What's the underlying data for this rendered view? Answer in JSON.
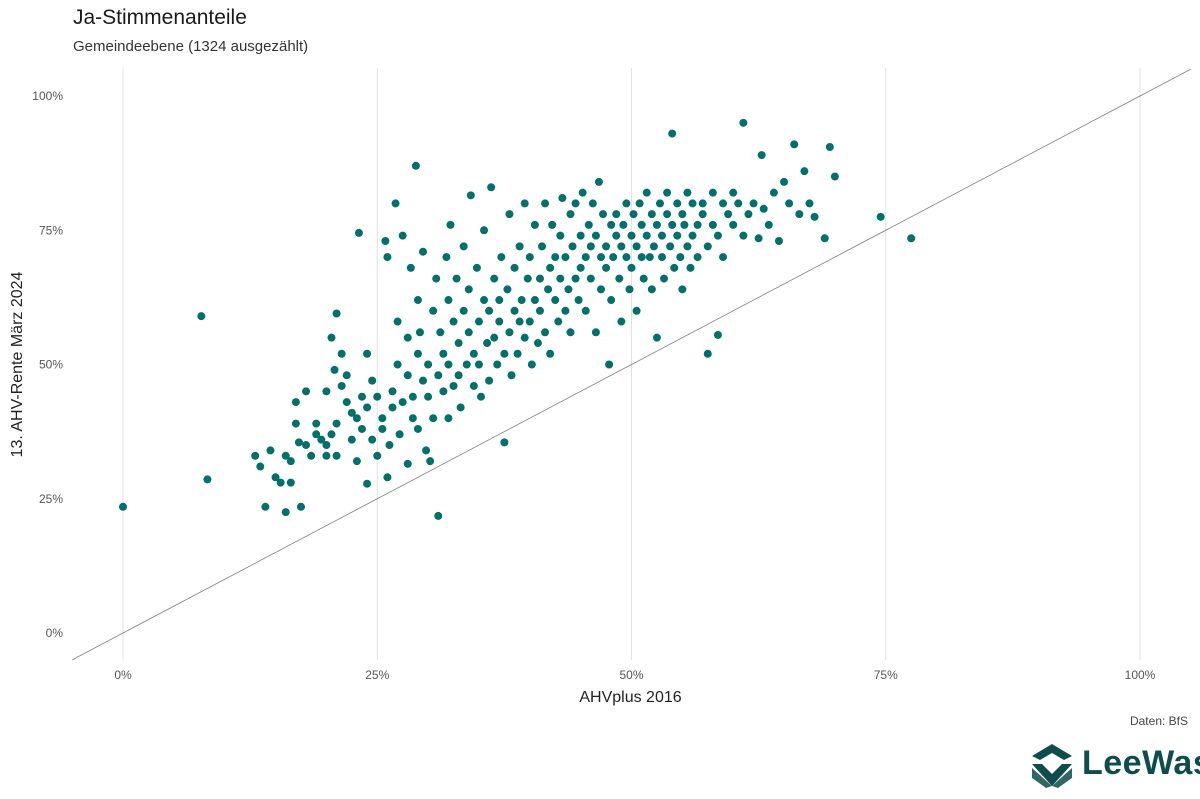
{
  "colors": {
    "points": "#04706a",
    "grid": "#e1e1e1",
    "diagonal": "#7f7f7f",
    "logo": "#0f4c4c"
  },
  "logo": {
    "text": "LeeWas",
    "icon": "leewas-logo-icon"
  },
  "caption": "Daten: BfS",
  "chart_data": {
    "type": "scatter",
    "title": "Ja-Stimmenanteile",
    "subtitle": "Gemeindeebene (1324 ausgezählt)",
    "xlabel": "AHVplus 2016",
    "ylabel": "13. AHV-Rente März 2024",
    "xlim": [
      -0.05,
      1.05
    ],
    "ylim": [
      -0.05,
      1.03
    ],
    "x_ticks": [
      0,
      0.25,
      0.5,
      0.75,
      1.0
    ],
    "x_tick_labels": [
      "0%",
      "25%",
      "50%",
      "75%",
      "100%"
    ],
    "y_ticks": [
      0,
      0.25,
      0.5,
      0.75,
      1.0
    ],
    "y_tick_labels": [
      "0%",
      "25%",
      "50%",
      "75%",
      "100%"
    ],
    "grid": "vertical",
    "reference_line": "y = x",
    "points": [
      [
        0.0,
        0.235
      ],
      [
        0.077,
        0.59
      ],
      [
        0.083,
        0.286
      ],
      [
        0.13,
        0.33
      ],
      [
        0.135,
        0.31
      ],
      [
        0.14,
        0.235
      ],
      [
        0.145,
        0.34
      ],
      [
        0.15,
        0.29
      ],
      [
        0.155,
        0.28
      ],
      [
        0.16,
        0.33
      ],
      [
        0.16,
        0.225
      ],
      [
        0.165,
        0.28
      ],
      [
        0.165,
        0.32
      ],
      [
        0.17,
        0.43
      ],
      [
        0.17,
        0.39
      ],
      [
        0.173,
        0.355
      ],
      [
        0.175,
        0.235
      ],
      [
        0.18,
        0.35
      ],
      [
        0.18,
        0.45
      ],
      [
        0.185,
        0.33
      ],
      [
        0.19,
        0.39
      ],
      [
        0.19,
        0.37
      ],
      [
        0.195,
        0.36
      ],
      [
        0.2,
        0.45
      ],
      [
        0.2,
        0.33
      ],
      [
        0.2,
        0.35
      ],
      [
        0.205,
        0.55
      ],
      [
        0.205,
        0.37
      ],
      [
        0.208,
        0.49
      ],
      [
        0.21,
        0.595
      ],
      [
        0.21,
        0.39
      ],
      [
        0.21,
        0.33
      ],
      [
        0.215,
        0.52
      ],
      [
        0.215,
        0.46
      ],
      [
        0.22,
        0.48
      ],
      [
        0.22,
        0.43
      ],
      [
        0.225,
        0.41
      ],
      [
        0.225,
        0.36
      ],
      [
        0.23,
        0.4
      ],
      [
        0.23,
        0.32
      ],
      [
        0.232,
        0.745
      ],
      [
        0.235,
        0.38
      ],
      [
        0.235,
        0.44
      ],
      [
        0.24,
        0.52
      ],
      [
        0.24,
        0.42
      ],
      [
        0.24,
        0.278
      ],
      [
        0.245,
        0.36
      ],
      [
        0.245,
        0.47
      ],
      [
        0.25,
        0.33
      ],
      [
        0.25,
        0.44
      ],
      [
        0.255,
        0.4
      ],
      [
        0.255,
        0.38
      ],
      [
        0.258,
        0.73
      ],
      [
        0.26,
        0.7
      ],
      [
        0.26,
        0.29
      ],
      [
        0.262,
        0.35
      ],
      [
        0.265,
        0.45
      ],
      [
        0.265,
        0.42
      ],
      [
        0.268,
        0.8
      ],
      [
        0.27,
        0.58
      ],
      [
        0.27,
        0.5
      ],
      [
        0.272,
        0.37
      ],
      [
        0.275,
        0.74
      ],
      [
        0.275,
        0.43
      ],
      [
        0.28,
        0.315
      ],
      [
        0.28,
        0.55
      ],
      [
        0.28,
        0.48
      ],
      [
        0.283,
        0.68
      ],
      [
        0.285,
        0.4
      ],
      [
        0.285,
        0.44
      ],
      [
        0.288,
        0.87
      ],
      [
        0.29,
        0.62
      ],
      [
        0.29,
        0.52
      ],
      [
        0.29,
        0.38
      ],
      [
        0.292,
        0.56
      ],
      [
        0.295,
        0.47
      ],
      [
        0.295,
        0.71
      ],
      [
        0.298,
        0.34
      ],
      [
        0.3,
        0.5
      ],
      [
        0.3,
        0.44
      ],
      [
        0.302,
        0.32
      ],
      [
        0.305,
        0.6
      ],
      [
        0.305,
        0.4
      ],
      [
        0.308,
        0.66
      ],
      [
        0.31,
        0.218
      ],
      [
        0.31,
        0.48
      ],
      [
        0.312,
        0.56
      ],
      [
        0.315,
        0.52
      ],
      [
        0.315,
        0.45
      ],
      [
        0.318,
        0.7
      ],
      [
        0.32,
        0.62
      ],
      [
        0.32,
        0.5
      ],
      [
        0.32,
        0.4
      ],
      [
        0.322,
        0.76
      ],
      [
        0.325,
        0.58
      ],
      [
        0.325,
        0.46
      ],
      [
        0.328,
        0.66
      ],
      [
        0.33,
        0.54
      ],
      [
        0.33,
        0.48
      ],
      [
        0.332,
        0.42
      ],
      [
        0.335,
        0.6
      ],
      [
        0.335,
        0.72
      ],
      [
        0.338,
        0.5
      ],
      [
        0.34,
        0.56
      ],
      [
        0.34,
        0.64
      ],
      [
        0.342,
        0.815
      ],
      [
        0.345,
        0.52
      ],
      [
        0.345,
        0.46
      ],
      [
        0.348,
        0.68
      ],
      [
        0.35,
        0.58
      ],
      [
        0.35,
        0.5
      ],
      [
        0.352,
        0.44
      ],
      [
        0.355,
        0.62
      ],
      [
        0.355,
        0.75
      ],
      [
        0.358,
        0.54
      ],
      [
        0.36,
        0.6
      ],
      [
        0.36,
        0.47
      ],
      [
        0.362,
        0.83
      ],
      [
        0.365,
        0.66
      ],
      [
        0.365,
        0.55
      ],
      [
        0.368,
        0.5
      ],
      [
        0.37,
        0.62
      ],
      [
        0.37,
        0.58
      ],
      [
        0.372,
        0.7
      ],
      [
        0.375,
        0.52
      ],
      [
        0.375,
        0.355
      ],
      [
        0.378,
        0.64
      ],
      [
        0.38,
        0.56
      ],
      [
        0.38,
        0.78
      ],
      [
        0.382,
        0.48
      ],
      [
        0.385,
        0.6
      ],
      [
        0.385,
        0.68
      ],
      [
        0.388,
        0.52
      ],
      [
        0.39,
        0.58
      ],
      [
        0.39,
        0.72
      ],
      [
        0.392,
        0.62
      ],
      [
        0.395,
        0.55
      ],
      [
        0.395,
        0.8
      ],
      [
        0.398,
        0.66
      ],
      [
        0.4,
        0.58
      ],
      [
        0.4,
        0.7
      ],
      [
        0.402,
        0.5
      ],
      [
        0.405,
        0.62
      ],
      [
        0.405,
        0.76
      ],
      [
        0.408,
        0.54
      ],
      [
        0.41,
        0.66
      ],
      [
        0.41,
        0.6
      ],
      [
        0.412,
        0.72
      ],
      [
        0.415,
        0.56
      ],
      [
        0.415,
        0.8
      ],
      [
        0.418,
        0.64
      ],
      [
        0.42,
        0.68
      ],
      [
        0.42,
        0.52
      ],
      [
        0.422,
        0.76
      ],
      [
        0.425,
        0.62
      ],
      [
        0.425,
        0.7
      ],
      [
        0.428,
        0.58
      ],
      [
        0.43,
        0.74
      ],
      [
        0.43,
        0.66
      ],
      [
        0.432,
        0.81
      ],
      [
        0.435,
        0.6
      ],
      [
        0.435,
        0.7
      ],
      [
        0.438,
        0.64
      ],
      [
        0.44,
        0.78
      ],
      [
        0.44,
        0.56
      ],
      [
        0.442,
        0.72
      ],
      [
        0.445,
        0.66
      ],
      [
        0.445,
        0.8
      ],
      [
        0.448,
        0.62
      ],
      [
        0.45,
        0.74
      ],
      [
        0.45,
        0.68
      ],
      [
        0.452,
        0.82
      ],
      [
        0.455,
        0.7
      ],
      [
        0.455,
        0.6
      ],
      [
        0.458,
        0.76
      ],
      [
        0.46,
        0.66
      ],
      [
        0.46,
        0.72
      ],
      [
        0.462,
        0.8
      ],
      [
        0.465,
        0.74
      ],
      [
        0.465,
        0.56
      ],
      [
        0.468,
        0.84
      ],
      [
        0.47,
        0.7
      ],
      [
        0.47,
        0.64
      ],
      [
        0.472,
        0.78
      ],
      [
        0.475,
        0.72
      ],
      [
        0.475,
        0.68
      ],
      [
        0.478,
        0.5
      ],
      [
        0.48,
        0.76
      ],
      [
        0.48,
        0.62
      ],
      [
        0.482,
        0.7
      ],
      [
        0.485,
        0.74
      ],
      [
        0.485,
        0.78
      ],
      [
        0.488,
        0.66
      ],
      [
        0.49,
        0.72
      ],
      [
        0.49,
        0.58
      ],
      [
        0.492,
        0.76
      ],
      [
        0.495,
        0.7
      ],
      [
        0.495,
        0.8
      ],
      [
        0.498,
        0.64
      ],
      [
        0.5,
        0.74
      ],
      [
        0.5,
        0.68
      ],
      [
        0.502,
        0.78
      ],
      [
        0.505,
        0.72
      ],
      [
        0.505,
        0.6
      ],
      [
        0.508,
        0.8
      ],
      [
        0.51,
        0.7
      ],
      [
        0.51,
        0.76
      ],
      [
        0.512,
        0.66
      ],
      [
        0.515,
        0.74
      ],
      [
        0.515,
        0.82
      ],
      [
        0.518,
        0.7
      ],
      [
        0.52,
        0.78
      ],
      [
        0.52,
        0.64
      ],
      [
        0.522,
        0.72
      ],
      [
        0.525,
        0.76
      ],
      [
        0.525,
        0.55
      ],
      [
        0.528,
        0.8
      ],
      [
        0.53,
        0.7
      ],
      [
        0.53,
        0.74
      ],
      [
        0.532,
        0.66
      ],
      [
        0.535,
        0.78
      ],
      [
        0.535,
        0.82
      ],
      [
        0.538,
        0.72
      ],
      [
        0.54,
        0.76
      ],
      [
        0.54,
        0.93
      ],
      [
        0.542,
        0.68
      ],
      [
        0.545,
        0.8
      ],
      [
        0.545,
        0.74
      ],
      [
        0.548,
        0.7
      ],
      [
        0.55,
        0.78
      ],
      [
        0.55,
        0.64
      ],
      [
        0.552,
        0.76
      ],
      [
        0.555,
        0.72
      ],
      [
        0.555,
        0.82
      ],
      [
        0.558,
        0.68
      ],
      [
        0.56,
        0.8
      ],
      [
        0.56,
        0.74
      ],
      [
        0.565,
        0.76
      ],
      [
        0.565,
        0.7
      ],
      [
        0.57,
        0.78
      ],
      [
        0.57,
        0.8
      ],
      [
        0.575,
        0.72
      ],
      [
        0.575,
        0.52
      ],
      [
        0.58,
        0.76
      ],
      [
        0.58,
        0.82
      ],
      [
        0.585,
        0.74
      ],
      [
        0.585,
        0.555
      ],
      [
        0.59,
        0.8
      ],
      [
        0.59,
        0.7
      ],
      [
        0.595,
        0.78
      ],
      [
        0.6,
        0.76
      ],
      [
        0.6,
        0.82
      ],
      [
        0.605,
        0.8
      ],
      [
        0.61,
        0.95
      ],
      [
        0.61,
        0.74
      ],
      [
        0.615,
        0.78
      ],
      [
        0.62,
        0.8
      ],
      [
        0.625,
        0.735
      ],
      [
        0.628,
        0.89
      ],
      [
        0.63,
        0.79
      ],
      [
        0.635,
        0.76
      ],
      [
        0.64,
        0.82
      ],
      [
        0.645,
        0.73
      ],
      [
        0.65,
        0.84
      ],
      [
        0.655,
        0.8
      ],
      [
        0.66,
        0.91
      ],
      [
        0.665,
        0.78
      ],
      [
        0.67,
        0.86
      ],
      [
        0.675,
        0.8
      ],
      [
        0.68,
        0.775
      ],
      [
        0.69,
        0.735
      ],
      [
        0.695,
        0.905
      ],
      [
        0.7,
        0.85
      ],
      [
        0.745,
        0.775
      ],
      [
        0.775,
        0.735
      ]
    ]
  }
}
